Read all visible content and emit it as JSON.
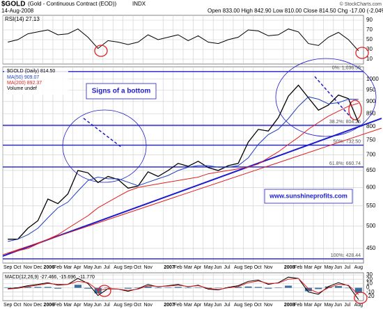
{
  "header": {
    "symbol": "$GOLD",
    "name": "(Gold - Continuous Contract (EOD))",
    "exchange": "INDX",
    "date": "14-Aug-2008",
    "quote": "Open 833.00 High 842.90 Low 810.00 Close 814.50 Chg -17.00 (-2.04%)",
    "credit": "© StockCharts.com"
  },
  "chart_data": [
    {
      "type": "line",
      "panel": "rsi",
      "legend": "RSI(14) 27.13",
      "color": "#000000",
      "categories": [
        "Sep",
        "Oct",
        "Nov",
        "Dec",
        "2006",
        "Feb",
        "Mar",
        "Apr",
        "May",
        "Jun",
        "Jul",
        "Aug",
        "Sep",
        "Oct",
        "Nov",
        null,
        "2007",
        "Feb",
        "Mar",
        "Apr",
        "May",
        "Jun",
        "Jul",
        "Aug",
        "Sep",
        "Oct",
        "Nov",
        null,
        "2008",
        "Feb",
        "Mar",
        "Apr",
        "May",
        "Jun",
        "Jul",
        "Aug"
      ],
      "values": [
        45,
        50,
        62,
        66,
        70,
        60,
        62,
        72,
        55,
        32,
        48,
        45,
        40,
        45,
        60,
        50,
        55,
        60,
        48,
        58,
        45,
        42,
        50,
        55,
        70,
        68,
        58,
        60,
        72,
        66,
        42,
        38,
        55,
        65,
        50,
        27.13
      ],
      "ylim": [
        0,
        100
      ],
      "yticks": [
        10,
        30,
        50,
        70,
        90
      ],
      "grid": true
    },
    {
      "type": "line",
      "panel": "price",
      "log_scale": true,
      "title": "$GOLD (Daily) 814.50",
      "categories": [
        "Sep",
        "Oct",
        "Nov",
        "Dec",
        "2006",
        "Feb",
        "Mar",
        "Apr",
        "May",
        "Jun",
        "Jul",
        "Aug",
        "Sep",
        "Oct",
        "Nov",
        null,
        "2007",
        "Feb",
        "Mar",
        "Apr",
        "May",
        "Jun",
        "Jul",
        "Aug",
        "Sep",
        "Oct",
        "Nov",
        null,
        "2008",
        "Feb",
        "Mar",
        "Apr",
        "May",
        "Jun",
        "Jul",
        "Aug"
      ],
      "series": [
        {
          "name": "$GOLD (Daily) 814.50",
          "color": "#000000",
          "values": [
            470,
            470,
            495,
            513,
            568,
            556,
            582,
            650,
            643,
            614,
            632,
            623,
            598,
            604,
            646,
            632,
            650,
            672,
            663,
            679,
            659,
            650,
            665,
            672,
            743,
            789,
            783,
            834,
            923,
            972,
            916,
            864,
            885,
            928,
            912,
            814.5
          ]
        },
        {
          "name": "MA(50) 909.07",
          "color": "#1f3fbf",
          "values": [
            465,
            470,
            480,
            495,
            520,
            545,
            560,
            590,
            620,
            630,
            625,
            625,
            615,
            605,
            615,
            625,
            635,
            650,
            660,
            665,
            665,
            660,
            660,
            665,
            690,
            735,
            770,
            790,
            830,
            880,
            920,
            910,
            890,
            895,
            910,
            909.07
          ]
        },
        {
          "name": "MA(200) 892.37",
          "color": "#e02020",
          "values": [
            440,
            445,
            450,
            460,
            470,
            480,
            495,
            510,
            525,
            545,
            560,
            575,
            590,
            600,
            605,
            610,
            615,
            620,
            625,
            630,
            640,
            645,
            650,
            655,
            660,
            670,
            690,
            710,
            735,
            760,
            790,
            815,
            840,
            860,
            880,
            892.37
          ]
        }
      ],
      "legend_extra": "Volume undef",
      "ylim": [
        420,
        1060
      ],
      "yticks": [
        450,
        500,
        550,
        600,
        650,
        700,
        750,
        800,
        850,
        900,
        950,
        1000
      ],
      "grid": true,
      "levels": [
        {
          "value": 1036.55,
          "label": "0%: 1,036.55"
        },
        {
          "value": 804.25,
          "label": "38.2%: 804.25"
        },
        {
          "value": 732.5,
          "label": "50%: 732.50"
        },
        {
          "value": 660.74,
          "label": "61.8%: 660.74"
        },
        {
          "value": 428.44,
          "label": "100%: 428.44"
        }
      ],
      "annotations": [
        "Signs of a bottom",
        "www.sunshineprofits.com"
      ]
    },
    {
      "type": "line",
      "panel": "macd",
      "legend": "MACD(12,26,9) -27.466, -15.696, -11.770",
      "categories": [
        "Sep",
        "Oct",
        "Nov",
        "Dec",
        "2006",
        "Feb",
        "Mar",
        "Apr",
        "May",
        "Jun",
        "Jul",
        "Aug",
        "Sep",
        "Oct",
        "Nov",
        null,
        "2007",
        "Feb",
        "Mar",
        "Apr",
        "May",
        "Jun",
        "Jul",
        "Aug",
        "Sep",
        "Oct",
        "Nov",
        null,
        "2008",
        "Feb",
        "Mar",
        "Apr",
        "May",
        "Jun",
        "Jul",
        "Aug"
      ],
      "series": [
        {
          "name": "MACD",
          "color": "#000000",
          "values": [
            -2,
            0,
            5,
            8,
            12,
            6,
            8,
            22,
            10,
            -18,
            -2,
            -3,
            -8,
            -2,
            8,
            2,
            5,
            8,
            2,
            6,
            -3,
            -5,
            1,
            5,
            15,
            18,
            8,
            12,
            25,
            22,
            -10,
            -15,
            3,
            12,
            5,
            -27.466
          ]
        },
        {
          "name": "Signal",
          "color": "#e02020",
          "values": [
            -3,
            -1,
            3,
            6,
            10,
            8,
            8,
            15,
            12,
            -5,
            -3,
            -3,
            -6,
            -3,
            5,
            3,
            4,
            6,
            3,
            5,
            -1,
            -4,
            0,
            3,
            12,
            16,
            10,
            11,
            20,
            22,
            -2,
            -12,
            0,
            8,
            6,
            -15.696
          ]
        },
        {
          "name": "Histogram",
          "color": "#3a6f9f",
          "values": [
            1,
            1,
            2,
            2,
            2,
            -2,
            0,
            7,
            -2,
            -13,
            1,
            0,
            -2,
            1,
            3,
            -1,
            1,
            2,
            -1,
            1,
            -2,
            -1,
            1,
            2,
            3,
            2,
            -2,
            1,
            5,
            0,
            -8,
            -3,
            3,
            4,
            -1,
            -11.77
          ]
        }
      ],
      "ylim": [
        -30,
        35
      ],
      "yticks": [
        -20,
        -10,
        0,
        10,
        20,
        30
      ],
      "grid": true
    }
  ]
}
